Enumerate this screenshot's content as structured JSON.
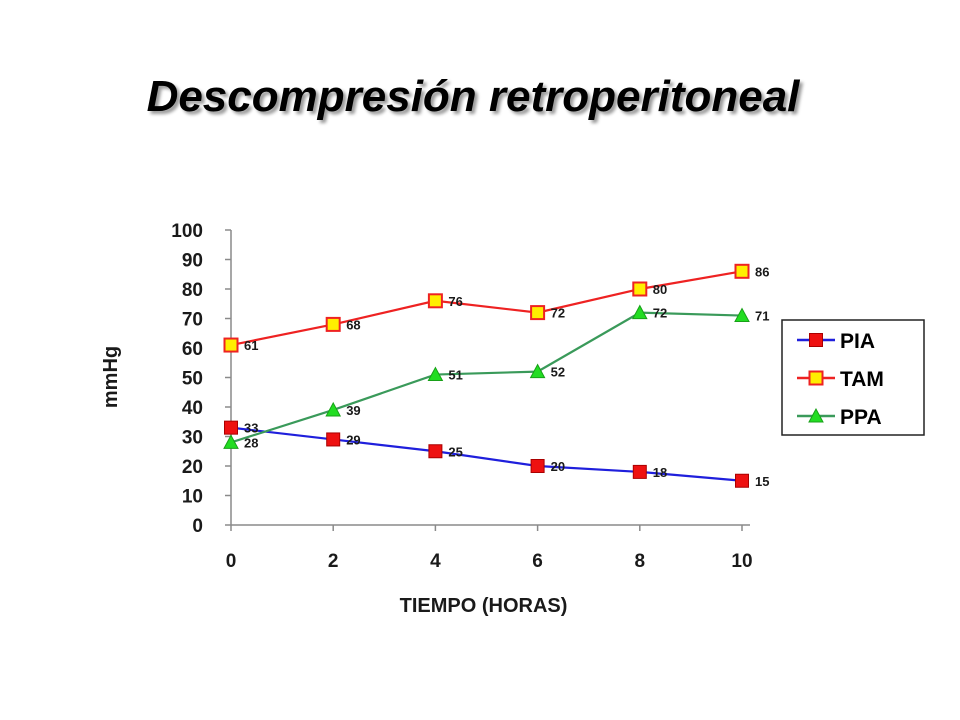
{
  "slide": {
    "title": "Descompresión retroperitoneal"
  },
  "chart_data": {
    "type": "line",
    "title": "",
    "xlabel": "TIEMPO (HORAS)",
    "ylabel": "mmHg",
    "x": [
      0,
      2,
      4,
      6,
      8,
      10
    ],
    "xlim": [
      0,
      10
    ],
    "ylim": [
      0,
      100
    ],
    "yticks": [
      0,
      10,
      20,
      30,
      40,
      50,
      60,
      70,
      80,
      90,
      100
    ],
    "grid": false,
    "legend_position": "right",
    "series": [
      {
        "name": "PIA",
        "color": "#1f1fdc",
        "marker": "square",
        "marker_color": "#ee1111",
        "values": [
          33,
          29,
          25,
          20,
          18,
          15
        ],
        "labels": [
          "33",
          "29",
          "25",
          "20",
          "18",
          "15"
        ]
      },
      {
        "name": "TAM",
        "color": "#ee2222",
        "marker": "square-hollow",
        "marker_color": "#ffee00",
        "values": [
          61,
          68,
          76,
          72,
          80,
          86
        ],
        "labels": [
          "61",
          "68",
          "76",
          "72",
          "80",
          "86"
        ]
      },
      {
        "name": "PPA",
        "color": "#3a9a5a",
        "marker": "triangle",
        "marker_color": "#22dd22",
        "values": [
          28,
          39,
          51,
          52,
          72,
          71
        ],
        "labels": [
          "28",
          "39",
          "51",
          "52",
          "72",
          "71"
        ]
      }
    ]
  }
}
